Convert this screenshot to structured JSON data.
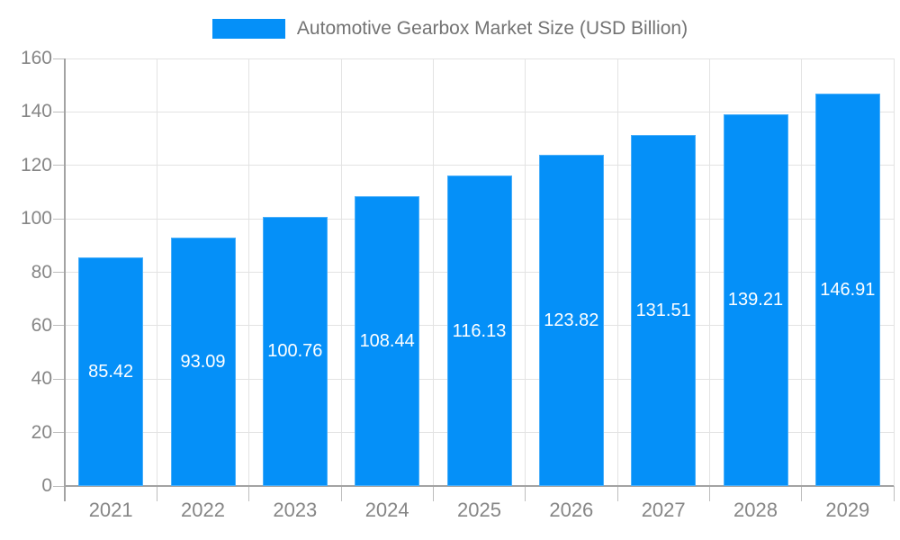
{
  "chart_data": {
    "type": "bar",
    "title": "Automotive Gearbox Market Size (USD Billion)",
    "categories": [
      "2021",
      "2022",
      "2023",
      "2024",
      "2025",
      "2026",
      "2027",
      "2028",
      "2029"
    ],
    "values": [
      85.42,
      93.09,
      100.76,
      108.44,
      116.13,
      123.82,
      131.51,
      139.21,
      146.91
    ],
    "xlabel": "",
    "ylabel": "",
    "ylim": [
      0,
      160
    ],
    "ytick_step": 20,
    "grid": true,
    "legend_position": "top",
    "value_labels": "inside-center",
    "colors": {
      "bar_fill": "#0590f8",
      "value_label": "#ffffff",
      "axis_label": "#868686",
      "legend_text": "#737373",
      "gridline": "#e3e3e3",
      "axis_line": "#a3a3a3",
      "tick": "#bdbdbd",
      "background": "#ffffff"
    }
  }
}
